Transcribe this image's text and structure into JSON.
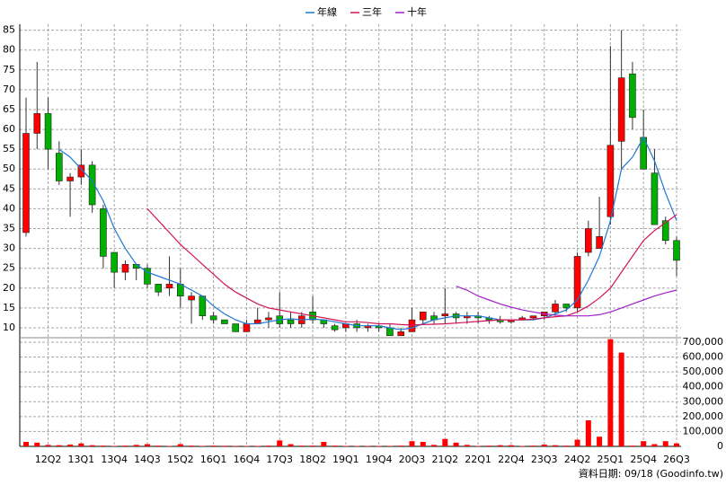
{
  "chart_data": {
    "type": "candlestick",
    "note": "資料日期: 09/18 (Goodinfo.tw)",
    "categories": [
      null,
      null,
      "12Q2",
      null,
      null,
      "13Q1",
      null,
      null,
      "13Q4",
      null,
      null,
      "14Q3",
      null,
      null,
      "15Q2",
      null,
      null,
      "16Q1",
      null,
      null,
      "16Q4",
      null,
      null,
      "17Q3",
      null,
      null,
      "18Q2",
      null,
      null,
      "19Q1",
      null,
      null,
      "19Q4",
      null,
      null,
      "20Q3",
      null,
      null,
      "21Q2",
      null,
      null,
      "22Q1",
      null,
      null,
      "22Q4",
      null,
      null,
      "23Q3",
      null,
      null,
      "24Q2",
      null,
      null,
      "25Q1",
      null,
      null,
      "25Q4",
      null,
      null,
      "26Q3"
    ],
    "open": [
      34,
      59,
      64,
      54,
      47,
      48,
      51,
      40,
      29,
      24,
      26,
      25,
      21,
      20,
      21,
      17,
      18,
      13,
      12,
      11,
      9,
      11,
      12,
      13,
      12,
      11,
      14,
      12,
      10.5,
      10,
      11,
      10,
      10.5,
      10,
      8,
      9,
      12,
      13,
      13,
      13.5,
      12.5,
      13,
      12.5,
      12,
      11.5,
      12,
      12.5,
      13,
      14,
      16,
      15,
      29,
      30,
      38,
      57,
      74,
      58,
      49,
      37,
      32
    ],
    "high": [
      68,
      77,
      68,
      57,
      49,
      55,
      52,
      41,
      29,
      27,
      26,
      26,
      21,
      28,
      25,
      19,
      18,
      14,
      12,
      11,
      12,
      15,
      14,
      19,
      14,
      14,
      18,
      12,
      11,
      11,
      12,
      11,
      11,
      11,
      10,
      15,
      14,
      14,
      20,
      14,
      14,
      14,
      13,
      13,
      12,
      13,
      13,
      14,
      17,
      16,
      29,
      37,
      43,
      81,
      85,
      77,
      65,
      55,
      38,
      33
    ],
    "low": [
      33,
      55,
      50,
      46,
      38,
      46,
      39,
      25,
      20,
      22,
      22,
      20,
      18,
      18,
      15,
      11,
      12,
      11,
      11,
      9,
      9,
      11,
      10,
      10,
      10,
      10,
      11,
      10,
      9,
      9,
      9,
      9,
      9,
      8,
      8,
      9,
      11,
      11,
      11,
      11,
      11,
      11,
      11,
      11,
      11,
      12,
      12,
      12,
      13,
      14,
      14,
      28,
      30,
      36,
      50,
      60,
      50,
      36,
      31,
      23
    ],
    "close": [
      59,
      64,
      55,
      47,
      48,
      51,
      41,
      28,
      24,
      26,
      25,
      21,
      19,
      21,
      18,
      18,
      13,
      12,
      11,
      9,
      11,
      12,
      12.5,
      11,
      11,
      13,
      12,
      11,
      9.5,
      11,
      10,
      10.5,
      10,
      8,
      9,
      12,
      14,
      12,
      13.5,
      12.5,
      13,
      12.5,
      12,
      11.5,
      12,
      12.5,
      13,
      14,
      16,
      15,
      28,
      35,
      33,
      56,
      73,
      63,
      50,
      36,
      32,
      27
    ],
    "up_color": "#ff0000",
    "down_color": "#00b000",
    "series": [
      {
        "name": "年線",
        "color": "#1e78d2",
        "values": [
          null,
          null,
          null,
          55,
          53,
          50,
          47,
          42,
          35,
          30,
          26,
          24,
          23,
          22,
          21,
          19.5,
          18,
          15.5,
          13.5,
          12,
          11,
          11,
          11.5,
          12,
          12.3,
          12,
          12.2,
          12,
          11.5,
          11,
          10.5,
          10.5,
          10.5,
          10,
          9.5,
          10,
          11,
          12,
          12.5,
          13,
          13,
          13,
          12.5,
          12,
          12,
          12,
          12,
          12.5,
          13.5,
          14.5,
          17,
          22,
          28,
          37,
          50,
          53,
          58,
          52,
          44,
          37
        ]
      },
      {
        "name": "三年",
        "color": "#d2145a",
        "values": [
          null,
          null,
          null,
          null,
          null,
          null,
          null,
          null,
          null,
          null,
          null,
          40,
          37,
          34,
          31,
          28.5,
          26,
          23.5,
          21,
          19,
          17.5,
          16,
          15,
          14.5,
          14,
          13.5,
          13,
          12.5,
          12,
          11.5,
          11.5,
          11.3,
          11,
          11,
          10.8,
          10.7,
          10.8,
          10.9,
          11,
          11.2,
          11.4,
          11.6,
          11.8,
          12,
          12,
          12,
          12.2,
          12.5,
          12.8,
          13,
          14,
          15.5,
          17.5,
          20,
          24,
          28,
          32,
          34.5,
          36.5,
          38.5
        ]
      },
      {
        "name": "十年",
        "color": "#a020c8",
        "values": [
          null,
          null,
          null,
          null,
          null,
          null,
          null,
          null,
          null,
          null,
          null,
          null,
          null,
          null,
          null,
          null,
          null,
          null,
          null,
          null,
          null,
          null,
          null,
          null,
          null,
          null,
          null,
          null,
          null,
          null,
          null,
          null,
          null,
          null,
          null,
          null,
          null,
          null,
          null,
          20.5,
          19.5,
          18,
          17,
          16,
          15.2,
          14.5,
          14,
          13.5,
          13.2,
          13,
          13,
          13,
          13.3,
          14,
          15,
          16,
          17,
          18,
          18.8,
          19.5
        ]
      }
    ],
    "volume": {
      "axis": "y2",
      "color": "#ff0000",
      "values": [
        30000,
        25000,
        10000,
        8000,
        12000,
        20000,
        8000,
        5000,
        3000,
        5000,
        10000,
        15000,
        5000,
        3000,
        15000,
        5000,
        3000,
        5000,
        4000,
        3000,
        3000,
        3000,
        5000,
        40000,
        15000,
        5000,
        5000,
        30000,
        5000,
        3000,
        3000,
        3000,
        3000,
        3000,
        5000,
        35000,
        30000,
        10000,
        50000,
        25000,
        10000,
        3000,
        5000,
        8000,
        8000,
        3000,
        5000,
        12000,
        8000,
        5000,
        45000,
        175000,
        65000,
        720000,
        630000,
        5000,
        35000,
        15000,
        35000,
        20000
      ]
    },
    "ylim": [
      7.5,
      86.5
    ],
    "yticks": [
      10,
      15,
      20,
      25,
      30,
      35,
      40,
      45,
      50,
      55,
      60,
      65,
      70,
      75,
      80,
      85
    ],
    "y2lim": [
      0,
      730000
    ],
    "y2ticks": [
      0,
      {
        "value": 100000,
        "label": "100,000"
      },
      {
        "value": 200000,
        "label": "200,000"
      },
      {
        "value": 300000,
        "label": "300,000"
      },
      {
        "value": 400000,
        "label": "400,000"
      },
      {
        "value": 500000,
        "label": "500,000"
      },
      {
        "value": 600000,
        "label": "600,000"
      },
      {
        "value": 700000,
        "label": "700,000"
      }
    ],
    "grid": true
  }
}
